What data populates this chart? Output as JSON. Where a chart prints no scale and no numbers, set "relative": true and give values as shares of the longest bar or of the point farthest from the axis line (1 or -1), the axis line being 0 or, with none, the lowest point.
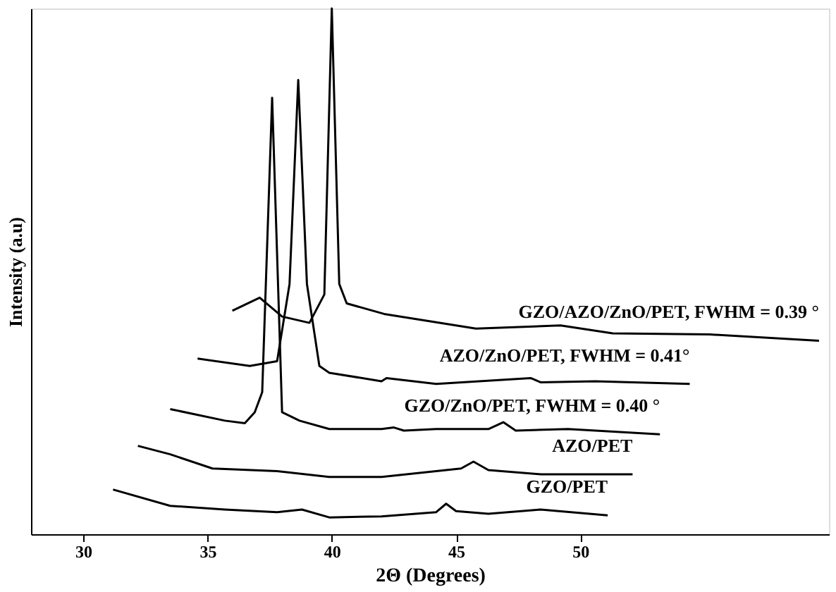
{
  "chart_data": {
    "type": "line",
    "relative": true,
    "xlabel": "2Θ (Degrees)",
    "ylabel": "Intensity (a.u)",
    "xlim": [
      27.9,
      60
    ],
    "xticks": [
      30,
      35,
      40,
      45,
      50
    ],
    "grid": false,
    "marker": "none",
    "line_style": "solid",
    "series": [
      {
        "name": "GZO/PET",
        "color": "#000000",
        "x": [
          31.2,
          33.5,
          35.7,
          37.8,
          38.8,
          39.9,
          42.0,
          44.2,
          44.6,
          45.0,
          46.3,
          48.4,
          51.1
        ],
        "values": [
          0.085,
          0.054,
          0.047,
          0.042,
          0.047,
          0.032,
          0.034,
          0.042,
          0.058,
          0.044,
          0.039,
          0.047,
          0.036
        ]
      },
      {
        "name": "AZO/PET",
        "color": "#000000",
        "x": [
          32.2,
          33.5,
          35.2,
          37.8,
          39.9,
          42.0,
          44.2,
          45.2,
          45.7,
          46.3,
          48.4,
          52.1
        ],
        "values": [
          0.168,
          0.152,
          0.125,
          0.12,
          0.109,
          0.109,
          0.12,
          0.125,
          0.138,
          0.122,
          0.114,
          0.114
        ]
      },
      {
        "name": "GZO/ZnO/PET, FWHM = 0.40 °",
        "color": "#000000",
        "x": [
          33.5,
          35.7,
          36.5,
          36.9,
          37.2,
          37.6,
          38.0,
          38.7,
          39.9,
          42.0,
          42.5,
          42.9,
          44.2,
          46.3,
          46.9,
          47.4,
          49.5,
          53.2
        ],
        "values": [
          0.238,
          0.216,
          0.211,
          0.232,
          0.27,
          0.83,
          0.232,
          0.216,
          0.2,
          0.2,
          0.203,
          0.197,
          0.2,
          0.2,
          0.213,
          0.197,
          0.2,
          0.19
        ]
      },
      {
        "name": "AZO/ZnO/PET, FWHM = 0.41°",
        "color": "#000000",
        "x": [
          34.6,
          36.7,
          37.8,
          38.3,
          38.65,
          39.0,
          39.5,
          39.9,
          42.0,
          42.2,
          44.2,
          48.0,
          48.4,
          50.6,
          54.4
        ],
        "values": [
          0.334,
          0.32,
          0.329,
          0.476,
          0.864,
          0.476,
          0.32,
          0.307,
          0.291,
          0.297,
          0.286,
          0.297,
          0.289,
          0.291,
          0.286
        ]
      },
      {
        "name": "GZO/AZO/ZnO/PET, FWHM = 0.39 °",
        "color": "#000000",
        "x": [
          36.0,
          37.1,
          38.0,
          39.1,
          39.7,
          40.0,
          40.3,
          40.6,
          42.1,
          45.8,
          49.2,
          51.3,
          55.2,
          59.6
        ],
        "values": [
          0.425,
          0.45,
          0.414,
          0.402,
          0.456,
          1,
          0.476,
          0.439,
          0.419,
          0.391,
          0.397,
          0.382,
          0.38,
          0.368
        ]
      }
    ]
  }
}
